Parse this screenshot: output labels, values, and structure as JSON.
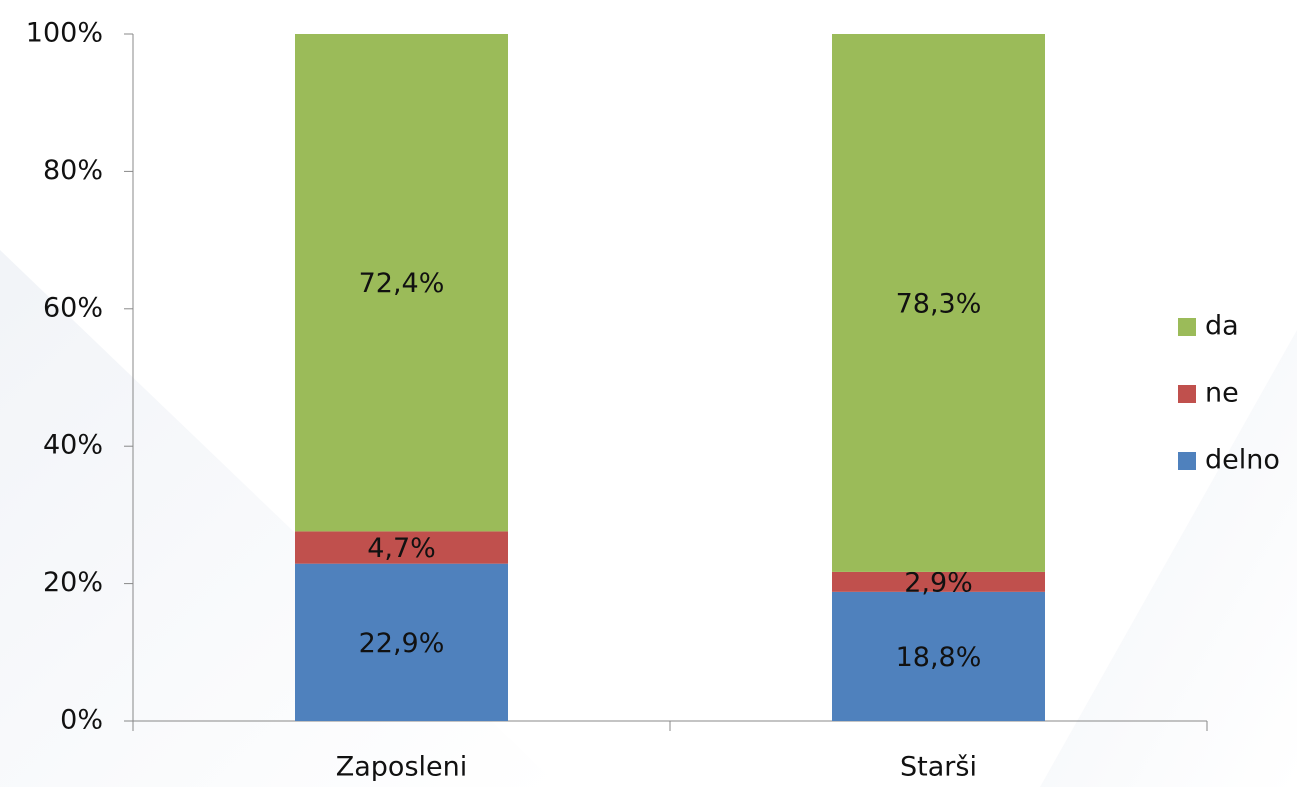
{
  "chart_data": {
    "type": "stacked_bar",
    "categories": [
      "Zaposleni",
      "Starši"
    ],
    "series": [
      {
        "name": "delno",
        "color": "#4f81bd",
        "values": [
          22.9,
          18.8
        ],
        "value_labels": [
          "22,9%",
          "18,8%"
        ]
      },
      {
        "name": "ne",
        "color": "#c0504d",
        "values": [
          4.7,
          2.9
        ],
        "value_labels": [
          "4,7%",
          "2,9%"
        ]
      },
      {
        "name": "da",
        "color": "#9bbb59",
        "values": [
          72.4,
          78.3
        ],
        "value_labels": [
          "72,4%",
          "78,3%"
        ]
      }
    ],
    "ylim": [
      0,
      100
    ],
    "yticks": [
      {
        "value": 0,
        "label": "0%"
      },
      {
        "value": 20,
        "label": "20%"
      },
      {
        "value": 40,
        "label": "40%"
      },
      {
        "value": 60,
        "label": "60%"
      },
      {
        "value": 80,
        "label": "80%"
      },
      {
        "value": 100,
        "label": "100%"
      }
    ],
    "legend": "right"
  }
}
